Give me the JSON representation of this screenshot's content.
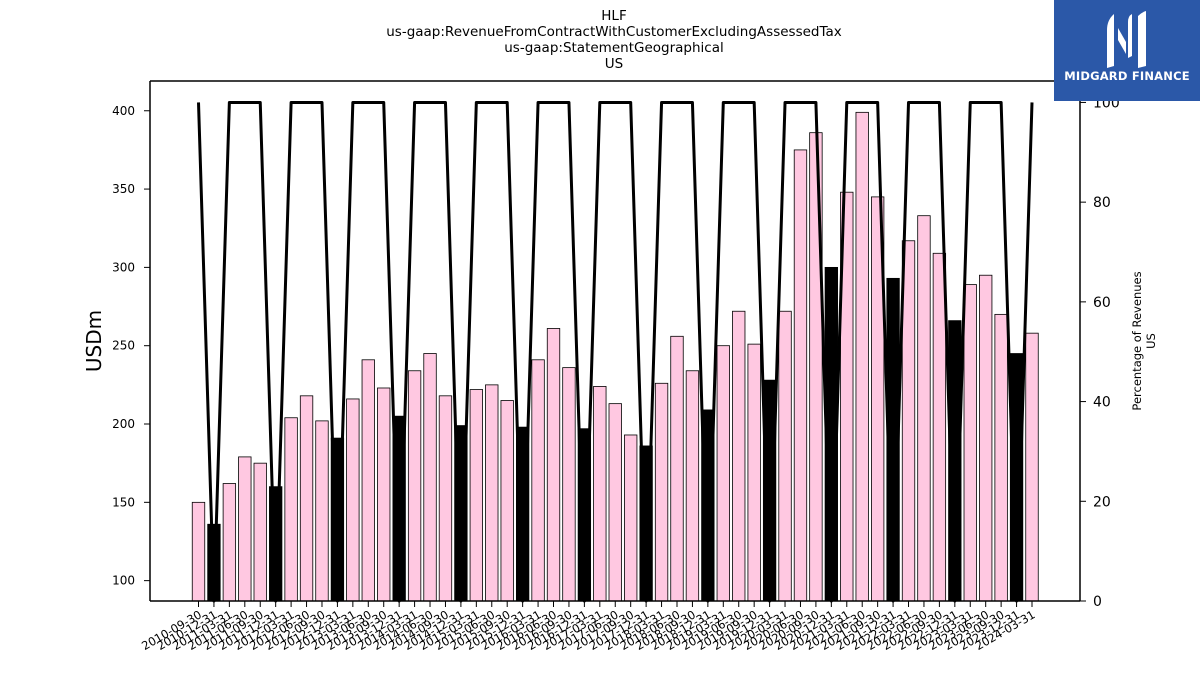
{
  "chart_data": {
    "type": "bar",
    "title_lines": [
      "HLF",
      "us-gaap:RevenueFromContractWithCustomerExcludingAssessedTax",
      "us-gaap:StatementGeographical",
      "US"
    ],
    "ylabel": "USDm",
    "ylabel_right_lines": [
      "Percentage of Revenues",
      "US"
    ],
    "ylim": [
      87,
      419
    ],
    "y_ticks": [
      100,
      150,
      200,
      250,
      300,
      350,
      400
    ],
    "ylim_right": [
      0,
      104.3
    ],
    "y_ticks_right": [
      0,
      20,
      40,
      60,
      80,
      100
    ],
    "categories": [
      "2010-09-30",
      "2010-12-31",
      "2011-03-31",
      "2011-06-30",
      "2011-09-30",
      "2011-12-31",
      "2012-03-31",
      "2012-06-30",
      "2012-09-30",
      "2012-12-31",
      "2013-03-31",
      "2013-06-30",
      "2013-09-30",
      "2013-12-31",
      "2014-03-31",
      "2014-06-30",
      "2014-09-30",
      "2014-12-31",
      "2015-03-31",
      "2015-06-30",
      "2015-09-30",
      "2015-12-31",
      "2016-03-31",
      "2016-06-30",
      "2016-09-30",
      "2016-12-31",
      "2017-03-31",
      "2017-06-30",
      "2017-09-30",
      "2017-12-31",
      "2018-03-31",
      "2018-06-30",
      "2018-09-30",
      "2018-12-31",
      "2019-03-31",
      "2019-06-30",
      "2019-09-30",
      "2019-12-31",
      "2020-03-31",
      "2020-06-30",
      "2020-09-30",
      "2020-12-31",
      "2021-03-31",
      "2021-06-30",
      "2021-09-30",
      "2021-12-31",
      "2022-03-31",
      "2022-06-30",
      "2022-09-30",
      "2022-12-31",
      "2023-03-31",
      "2023-06-30",
      "2023-09-30",
      "2023-12-31",
      "2024-03-31"
    ],
    "bar_values": [
      150,
      136,
      162,
      179,
      175,
      160,
      204,
      218,
      202,
      191,
      216,
      241,
      223,
      205,
      234,
      245,
      218,
      199,
      222,
      225,
      215,
      198,
      241,
      261,
      236,
      197,
      224,
      213,
      193,
      186,
      226,
      256,
      234,
      209,
      250,
      272,
      251,
      228,
      272,
      375,
      386,
      300,
      348,
      399,
      345,
      293,
      317,
      333,
      309,
      266,
      289,
      295,
      270,
      245,
      258
    ],
    "bar_highlight": [
      0,
      1,
      0,
      0,
      0,
      1,
      0,
      0,
      0,
      1,
      0,
      0,
      0,
      1,
      0,
      0,
      0,
      1,
      0,
      0,
      0,
      1,
      0,
      0,
      0,
      1,
      0,
      0,
      0,
      1,
      0,
      0,
      0,
      1,
      0,
      0,
      0,
      1,
      0,
      0,
      0,
      1,
      0,
      0,
      0,
      1,
      0,
      0,
      0,
      1,
      0,
      0,
      0,
      1,
      0
    ],
    "line_values": [
      100,
      0,
      100,
      100,
      100,
      0,
      100,
      100,
      100,
      0,
      100,
      100,
      100,
      0,
      100,
      100,
      100,
      0,
      100,
      100,
      100,
      0,
      100,
      100,
      100,
      0,
      100,
      100,
      100,
      0,
      100,
      100,
      100,
      0,
      100,
      100,
      100,
      0,
      100,
      100,
      100,
      0,
      100,
      100,
      100,
      0,
      100,
      100,
      100,
      0,
      100,
      100,
      100,
      0,
      100
    ],
    "colors": {
      "bar_fill": "#ffc8e1",
      "bar_highlight_fill": "#000000",
      "bar_stroke": "#000000",
      "line": "#000000"
    },
    "grid": false,
    "legend": "none"
  },
  "logo": {
    "text": "MIDGARD FINANCE",
    "icon": "midgard-logo-icon",
    "color": "#2b58a8"
  }
}
